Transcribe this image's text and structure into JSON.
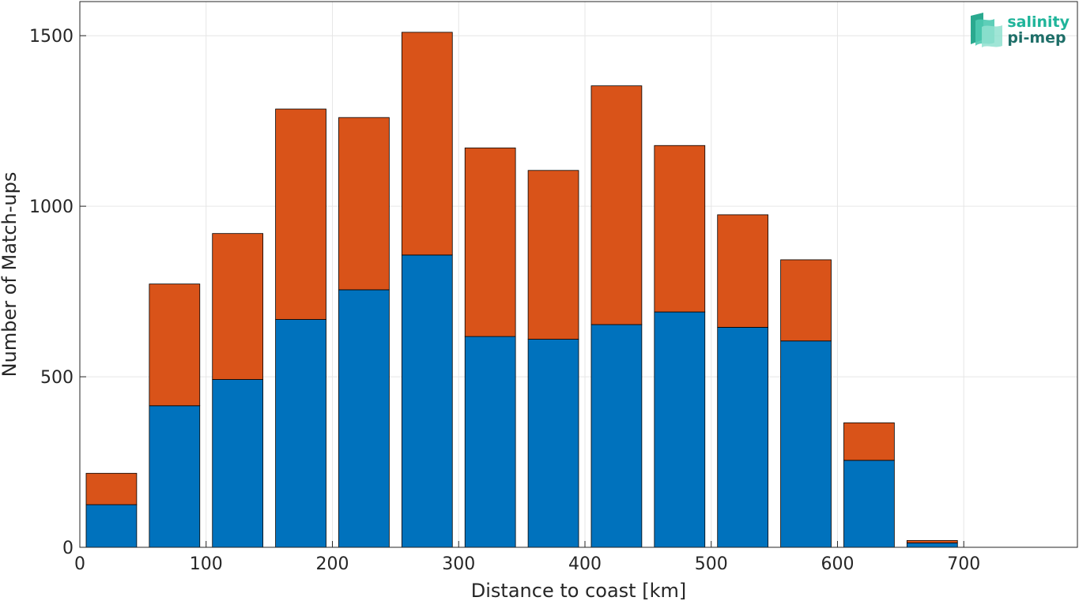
{
  "chart_data": {
    "type": "bar",
    "stacked": true,
    "x": [
      25,
      75,
      125,
      175,
      225,
      275,
      325,
      375,
      425,
      475,
      525,
      575,
      625,
      675,
      725
    ],
    "series": [
      {
        "values": [
          125,
          415,
          492,
          668,
          755,
          857,
          618,
          610,
          653,
          690,
          645,
          605,
          255,
          13,
          0
        ],
        "color": "#0072BD"
      },
      {
        "values": [
          92,
          357,
          428,
          617,
          505,
          653,
          553,
          495,
          700,
          488,
          330,
          238,
          110,
          7,
          0
        ],
        "color": "#D95319"
      }
    ],
    "xlabel": "Distance to coast [km]",
    "ylabel": "Number of Match-ups",
    "xlim": [
      0,
      790
    ],
    "ylim": [
      0,
      1600
    ],
    "xticks": [
      0,
      100,
      200,
      300,
      400,
      500,
      600,
      700
    ],
    "yticks": [
      0,
      500,
      1000,
      1500
    ],
    "grid": true,
    "legend": "none"
  },
  "logo": {
    "line1": "salinity",
    "line2": "pi-mep",
    "icon": "salinity-wave-icon",
    "colors": [
      "#1fb49a",
      "#1e6e68"
    ]
  }
}
